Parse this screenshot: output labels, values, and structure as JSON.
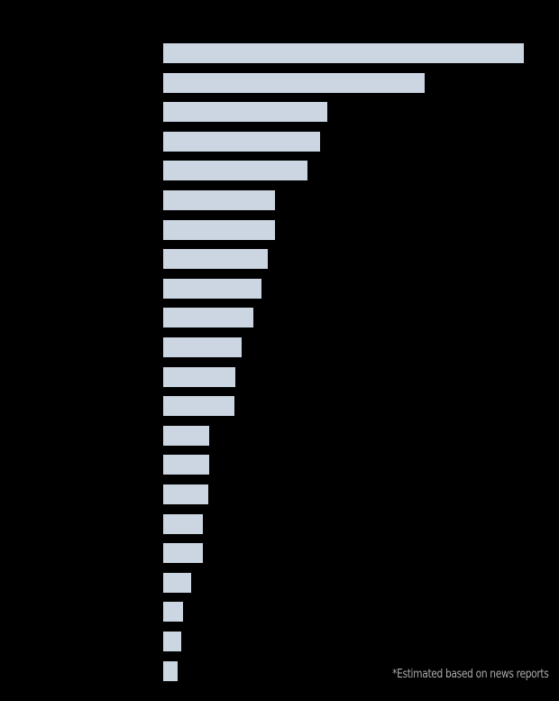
{
  "chart_data": {
    "type": "bar",
    "orientation": "horizontal",
    "title": "",
    "xlabel": "",
    "ylabel": "",
    "categories": [
      "",
      "",
      "",
      "",
      "",
      "",
      "",
      "",
      "",
      "",
      "",
      "",
      "",
      "",
      "",
      "",
      "",
      "",
      "",
      "",
      "",
      ""
    ],
    "values": [
      400,
      290,
      182,
      174,
      160,
      124,
      124,
      116,
      109,
      100,
      87,
      80,
      79,
      51,
      51,
      50,
      44,
      44,
      31,
      22,
      20,
      16
    ],
    "value_units": "relative bar length (px at scale where longest = 400)",
    "bar_color": "#ccd6e2",
    "background": "#000000",
    "grid": false,
    "legend": null,
    "annotations": [
      "*Estimated based on news reports"
    ]
  },
  "footnote": "*Estimated based on news reports"
}
